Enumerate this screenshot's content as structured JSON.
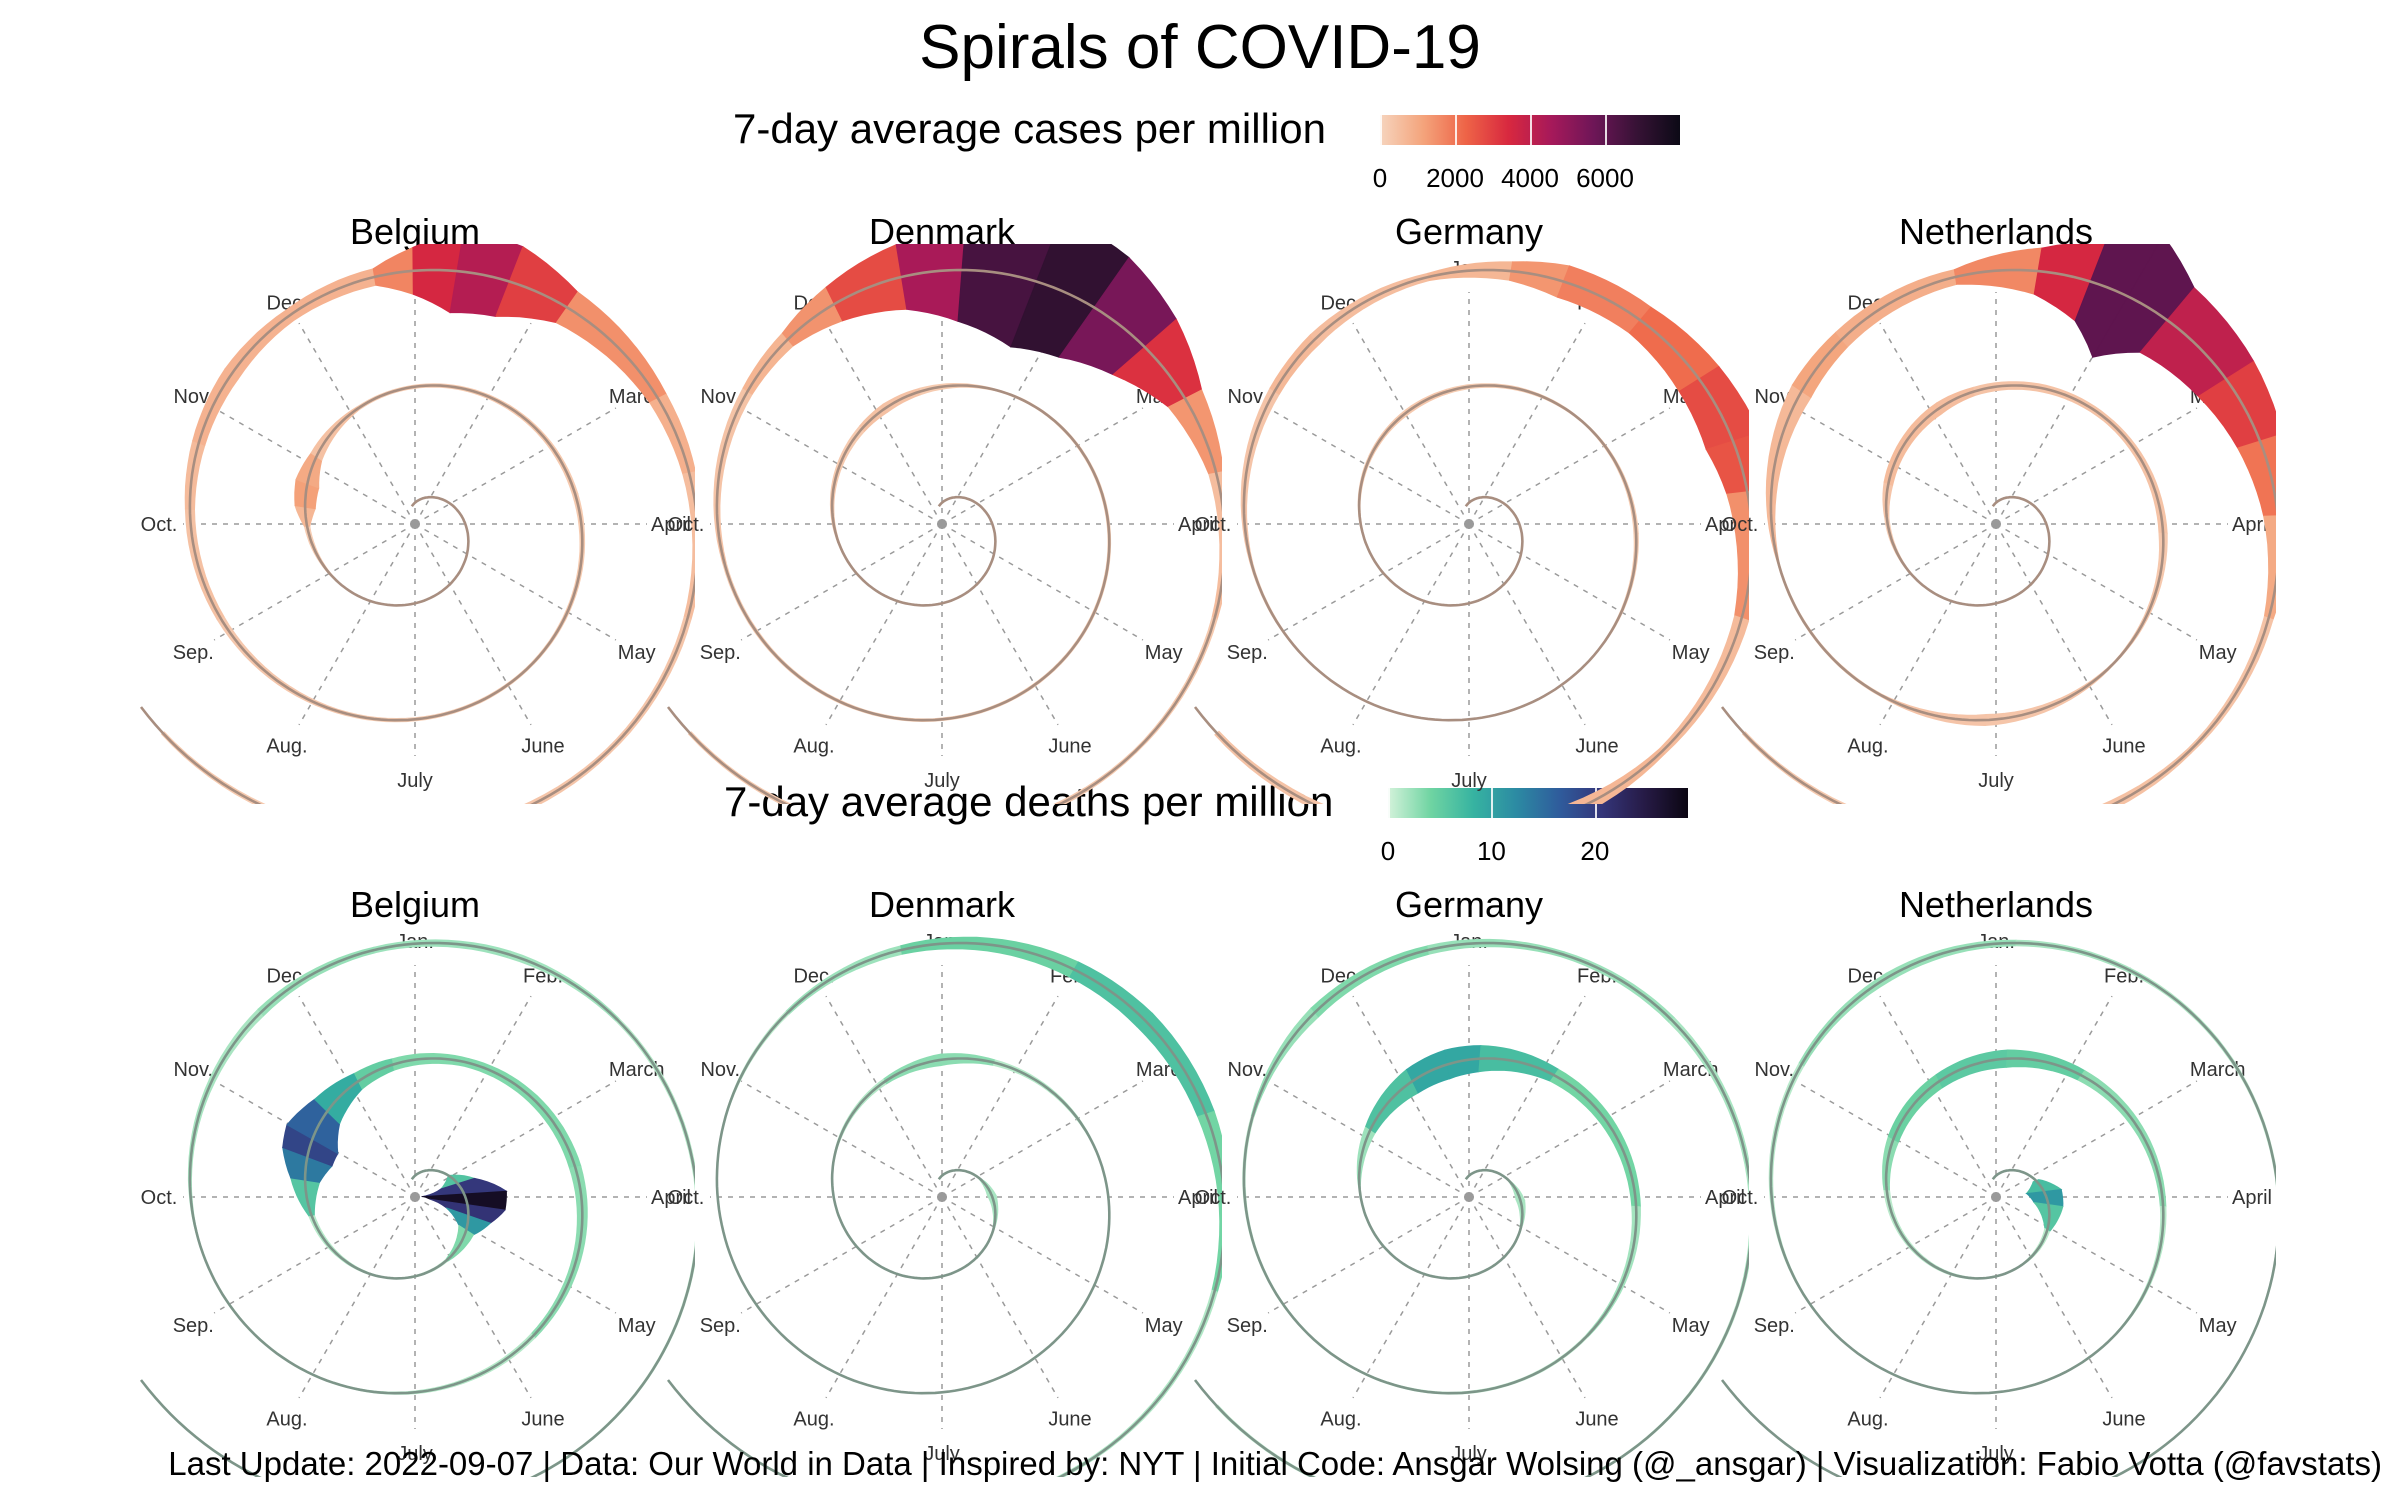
{
  "title": "Spirals of COVID-19",
  "footer": "Last Update: 2022-09-07 | Data: Our World in Data | Inspired by: NYT | Initial Code: Ansgar Wolsing (@_ansgar) | Visualization: Fabio Votta (@favstats)",
  "legends": {
    "cases": {
      "title": "7-day average cases per million",
      "ticks": [
        "0",
        "2000",
        "4000",
        "6000"
      ],
      "tick_values": [
        0,
        2000,
        4000,
        6000
      ],
      "range": [
        0,
        8000
      ],
      "colors": [
        "#f6d4bd",
        "#f4a47c",
        "#ee6447",
        "#d8283f",
        "#a6195a",
        "#6d1657",
        "#361235",
        "#0c0a16"
      ]
    },
    "deaths": {
      "title": "7-day average deaths per million",
      "ticks": [
        "0",
        "10",
        "20"
      ],
      "tick_values": [
        0,
        10,
        20
      ],
      "range": [
        0,
        29
      ],
      "colors": [
        "#d3f2da",
        "#6fd4a2",
        "#36b3a1",
        "#2c8aa3",
        "#2f5c9c",
        "#343579",
        "#261a45",
        "#0b0612"
      ]
    }
  },
  "months": [
    "Jan.",
    "Feb.",
    "March",
    "April",
    "May",
    "June",
    "July",
    "Aug.",
    "Sep.",
    "Oct.",
    "Nov.",
    "Dec."
  ],
  "colors": {
    "spiral_cases": "#a88e80",
    "spiral_deaths": "#7d9589",
    "gridline": "#9a9a9a"
  },
  "chart_data": [
    {
      "type": "area",
      "metric": "7-day average cases per million",
      "country": "Belgium",
      "x": [
        "2020-03-01",
        "2020-04-01",
        "2020-05-01",
        "2020-07-01",
        "2020-09-01",
        "2020-10-10",
        "2020-10-20",
        "2020-11-01",
        "2020-11-15",
        "2020-12-15",
        "2021-01-01",
        "2021-02-01",
        "2021-04-01",
        "2021-06-01",
        "2021-08-01",
        "2021-09-15",
        "2021-10-15",
        "2021-11-01",
        "2021-11-20",
        "2021-12-10",
        "2022-01-01",
        "2022-01-10",
        "2022-01-20",
        "2022-02-01",
        "2022-02-15",
        "2022-03-15",
        "2022-04-01",
        "2022-05-01",
        "2022-06-01",
        "2022-07-01",
        "2022-08-01",
        "2022-09-01"
      ],
      "y": [
        5,
        80,
        30,
        15,
        40,
        300,
        1100,
        1300,
        700,
        200,
        180,
        200,
        300,
        150,
        200,
        400,
        500,
        700,
        900,
        700,
        900,
        2500,
        4500,
        4000,
        2000,
        1000,
        700,
        400,
        300,
        400,
        300,
        200
      ]
    },
    {
      "type": "area",
      "metric": "7-day average cases per million",
      "country": "Denmark",
      "x": [
        "2020-03-01",
        "2020-05-01",
        "2020-08-01",
        "2020-10-01",
        "2020-12-01",
        "2020-12-15",
        "2021-01-01",
        "2021-02-01",
        "2021-04-01",
        "2021-06-01",
        "2021-08-01",
        "2021-10-01",
        "2021-11-15",
        "2021-12-01",
        "2021-12-15",
        "2022-01-01",
        "2022-01-15",
        "2022-02-01",
        "2022-02-15",
        "2022-03-01",
        "2022-03-15",
        "2022-04-01",
        "2022-05-01",
        "2022-06-01",
        "2022-07-01",
        "2022-08-01",
        "2022-09-01"
      ],
      "y": [
        10,
        20,
        30,
        100,
        400,
        500,
        350,
        100,
        150,
        150,
        150,
        200,
        600,
        900,
        2000,
        3500,
        5500,
        7500,
        6500,
        4500,
        2000,
        800,
        300,
        200,
        300,
        250,
        200
      ]
    },
    {
      "type": "area",
      "metric": "7-day average cases per million",
      "country": "Germany",
      "x": [
        "2020-03-01",
        "2020-04-01",
        "2020-06-01",
        "2020-09-01",
        "2020-10-15",
        "2020-11-15",
        "2020-12-15",
        "2021-01-01",
        "2021-03-01",
        "2021-04-15",
        "2021-06-01",
        "2021-08-01",
        "2021-10-01",
        "2021-11-15",
        "2021-12-01",
        "2022-01-01",
        "2022-01-20",
        "2022-02-01",
        "2022-02-20",
        "2022-03-10",
        "2022-03-25",
        "2022-04-05",
        "2022-05-01",
        "2022-06-01",
        "2022-07-01",
        "2022-08-01",
        "2022-09-01"
      ],
      "y": [
        5,
        60,
        5,
        10,
        100,
        200,
        300,
        250,
        100,
        250,
        50,
        20,
        150,
        600,
        700,
        400,
        1000,
        1800,
        1800,
        2500,
        3000,
        2200,
        800,
        400,
        1000,
        500,
        300
      ]
    },
    {
      "type": "area",
      "metric": "7-day average cases per million",
      "country": "Netherlands",
      "x": [
        "2020-03-01",
        "2020-04-01",
        "2020-06-01",
        "2020-09-01",
        "2020-10-15",
        "2020-11-01",
        "2020-12-15",
        "2021-01-01",
        "2021-03-01",
        "2021-04-15",
        "2021-06-01",
        "2021-07-15",
        "2021-08-15",
        "2021-10-01",
        "2021-11-15",
        "2021-12-01",
        "2022-01-01",
        "2022-01-20",
        "2022-02-01",
        "2022-02-10",
        "2022-02-20",
        "2022-03-10",
        "2022-03-25",
        "2022-04-10",
        "2022-05-01",
        "2022-06-01",
        "2022-07-01",
        "2022-08-01",
        "2022-09-01"
      ],
      "y": [
        5,
        60,
        5,
        30,
        250,
        500,
        650,
        450,
        350,
        450,
        100,
        600,
        150,
        100,
        1200,
        1000,
        800,
        2500,
        4500,
        7500,
        4500,
        3500,
        2500,
        1500,
        500,
        300,
        600,
        300,
        200
      ]
    },
    {
      "type": "area",
      "metric": "7-day average deaths per million",
      "country": "Belgium",
      "x": [
        "2020-03-10",
        "2020-03-25",
        "2020-04-08",
        "2020-04-20",
        "2020-05-01",
        "2020-05-15",
        "2020-06-15",
        "2020-08-01",
        "2020-10-01",
        "2020-10-20",
        "2020-11-01",
        "2020-11-10",
        "2020-11-25",
        "2020-12-15",
        "2021-01-01",
        "2021-02-01",
        "2021-04-01",
        "2021-06-01",
        "2021-08-01",
        "2021-10-01",
        "2021-12-01",
        "2022-01-01",
        "2022-02-01",
        "2022-03-01",
        "2022-05-01",
        "2022-07-01",
        "2022-09-01"
      ],
      "y": [
        0.5,
        12,
        29,
        26,
        16,
        6,
        1,
        0.3,
        2,
        10,
        18,
        20,
        12,
        6,
        4,
        3,
        4,
        2,
        0.5,
        0.5,
        3,
        2,
        2.5,
        1.5,
        0.8,
        0.6,
        0.5
      ]
    },
    {
      "type": "area",
      "metric": "7-day average deaths per million",
      "country": "Denmark",
      "x": [
        "2020-03-15",
        "2020-04-10",
        "2020-05-15",
        "2020-08-01",
        "2020-11-01",
        "2020-12-15",
        "2021-01-10",
        "2021-02-01",
        "2021-04-01",
        "2021-06-01",
        "2021-09-01",
        "2021-11-01",
        "2021-12-01",
        "2022-01-01",
        "2022-02-10",
        "2022-03-01",
        "2022-03-25",
        "2022-05-01",
        "2022-07-01",
        "2022-09-01"
      ],
      "y": [
        0.5,
        3,
        0.5,
        0.1,
        0.5,
        2,
        4,
        2,
        0.3,
        0.1,
        0.2,
        0.5,
        1.5,
        3,
        6,
        7,
        6,
        2,
        0.8,
        0.5
      ]
    },
    {
      "type": "area",
      "metric": "7-day average deaths per million",
      "country": "Germany",
      "x": [
        "2020-03-20",
        "2020-04-15",
        "2020-05-15",
        "2020-08-01",
        "2020-10-15",
        "2020-11-15",
        "2020-12-15",
        "2021-01-01",
        "2021-01-15",
        "2021-02-15",
        "2021-04-15",
        "2021-06-01",
        "2021-09-01",
        "2021-11-01",
        "2021-12-01",
        "2022-01-01",
        "2022-02-01",
        "2022-03-01",
        "2022-05-01",
        "2022-07-01",
        "2022-09-01"
      ],
      "y": [
        0.5,
        3,
        0.5,
        0.05,
        0.5,
        4,
        9,
        10,
        9,
        5,
        3,
        1,
        0.5,
        1,
        4,
        3,
        2,
        2.5,
        1,
        0.5,
        1
      ]
    },
    {
      "type": "area",
      "metric": "7-day average deaths per million",
      "country": "Netherlands",
      "x": [
        "2020-03-20",
        "2020-04-05",
        "2020-04-20",
        "2020-05-15",
        "2020-07-01",
        "2020-10-15",
        "2020-11-10",
        "2020-12-15",
        "2021-01-15",
        "2021-02-15",
        "2021-04-15",
        "2021-06-01",
        "2021-09-01",
        "2021-11-15",
        "2021-12-15",
        "2022-01-15",
        "2022-02-15",
        "2022-03-15",
        "2022-05-01",
        "2022-07-01",
        "2022-09-01"
      ],
      "y": [
        2,
        12,
        10,
        2,
        0.1,
        2,
        4,
        5,
        6,
        4,
        2,
        0.5,
        0.2,
        2,
        3,
        2,
        1.5,
        1,
        0.5,
        0.3,
        0.3
      ]
    }
  ]
}
